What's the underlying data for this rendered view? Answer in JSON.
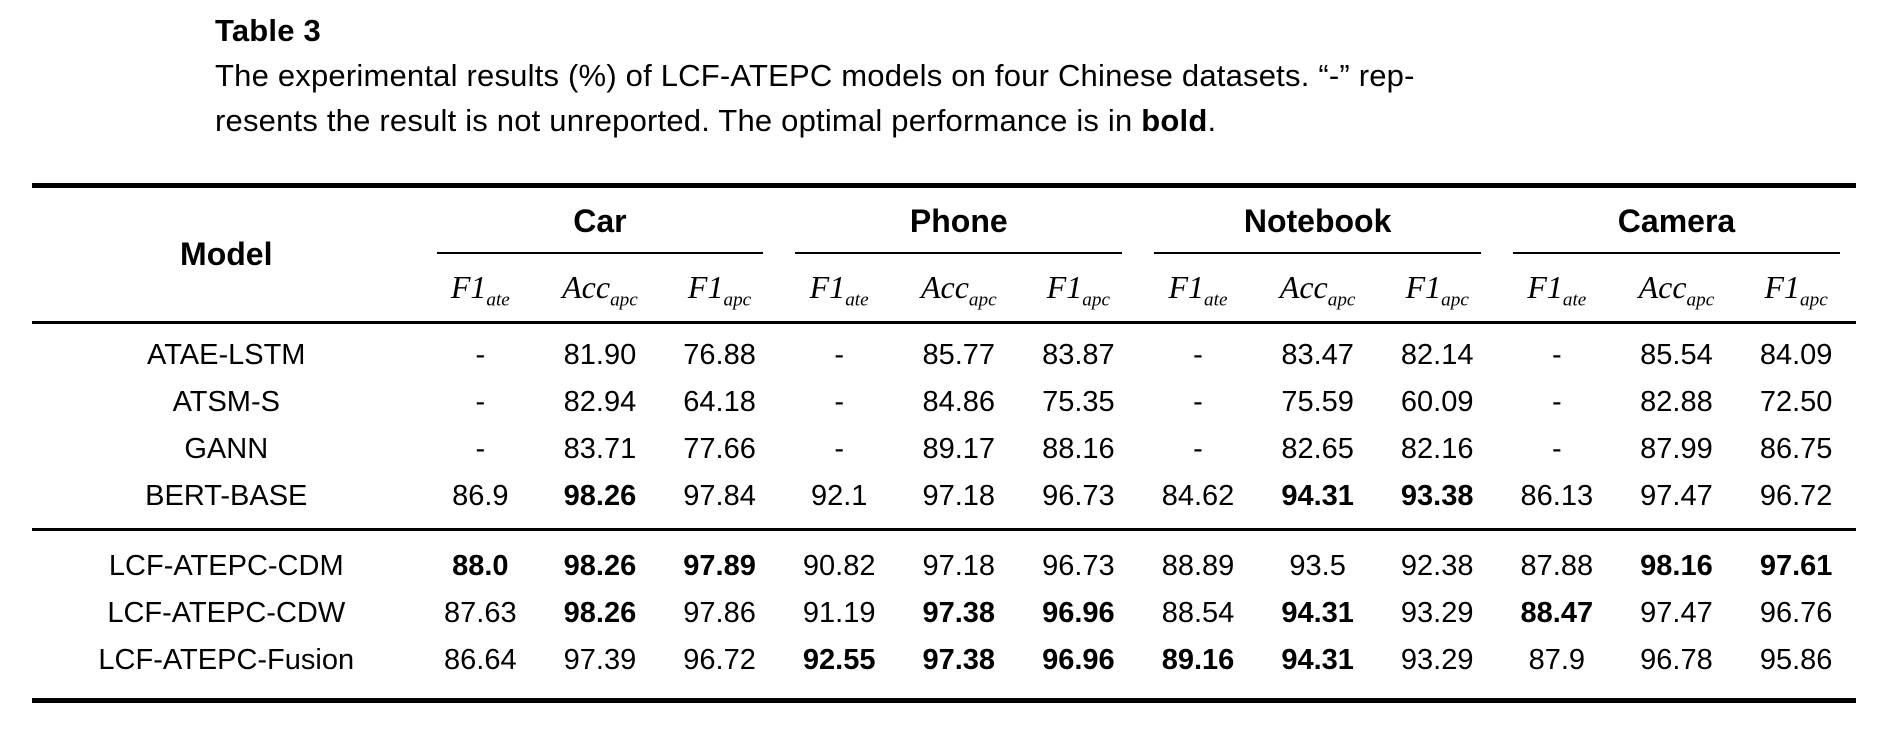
{
  "caption": {
    "title": "Table 3",
    "line1": "The experimental results (%) of LCF-ATEPC models on four Chinese datasets. “-” rep-",
    "line2_prefix": "resents the result is not unreported. The optimal performance is in ",
    "line2_bold": "bold",
    "line2_suffix": "."
  },
  "table": {
    "model_header": "Model",
    "groups": [
      {
        "label": "Car"
      },
      {
        "label": "Phone"
      },
      {
        "label": "Notebook"
      },
      {
        "label": "Camera"
      }
    ],
    "metrics_per_group": [
      {
        "base": "F1",
        "sub": "ate"
      },
      {
        "base": "Acc",
        "sub": "apc"
      },
      {
        "base": "F1",
        "sub": "apc"
      }
    ],
    "baseline_rows": [
      {
        "model": "ATAE-LSTM",
        "cells": [
          {
            "v": "-"
          },
          {
            "v": "81.90"
          },
          {
            "v": "76.88"
          },
          {
            "v": "-"
          },
          {
            "v": "85.77"
          },
          {
            "v": "83.87"
          },
          {
            "v": "-"
          },
          {
            "v": "83.47"
          },
          {
            "v": "82.14"
          },
          {
            "v": "-"
          },
          {
            "v": "85.54"
          },
          {
            "v": "84.09"
          }
        ]
      },
      {
        "model": "ATSM-S",
        "cells": [
          {
            "v": "-"
          },
          {
            "v": "82.94"
          },
          {
            "v": "64.18"
          },
          {
            "v": "-"
          },
          {
            "v": "84.86"
          },
          {
            "v": "75.35"
          },
          {
            "v": "-"
          },
          {
            "v": "75.59"
          },
          {
            "v": "60.09"
          },
          {
            "v": "-"
          },
          {
            "v": "82.88"
          },
          {
            "v": "72.50"
          }
        ]
      },
      {
        "model": "GANN",
        "cells": [
          {
            "v": "-"
          },
          {
            "v": "83.71"
          },
          {
            "v": "77.66"
          },
          {
            "v": "-"
          },
          {
            "v": "89.17"
          },
          {
            "v": "88.16"
          },
          {
            "v": "-"
          },
          {
            "v": "82.65"
          },
          {
            "v": "82.16"
          },
          {
            "v": "-"
          },
          {
            "v": "87.99"
          },
          {
            "v": "86.75"
          }
        ]
      },
      {
        "model": "BERT-BASE",
        "cells": [
          {
            "v": "86.9"
          },
          {
            "v": "98.26",
            "b": true
          },
          {
            "v": "97.84"
          },
          {
            "v": "92.1"
          },
          {
            "v": "97.18"
          },
          {
            "v": "96.73"
          },
          {
            "v": "84.62"
          },
          {
            "v": "94.31",
            "b": true
          },
          {
            "v": "93.38",
            "b": true
          },
          {
            "v": "86.13"
          },
          {
            "v": "97.47"
          },
          {
            "v": "96.72"
          }
        ]
      }
    ],
    "lcf_rows": [
      {
        "model": "LCF-ATEPC-CDM",
        "cells": [
          {
            "v": "88.0",
            "b": true
          },
          {
            "v": "98.26",
            "b": true
          },
          {
            "v": "97.89",
            "b": true
          },
          {
            "v": "90.82"
          },
          {
            "v": "97.18"
          },
          {
            "v": "96.73"
          },
          {
            "v": "88.89"
          },
          {
            "v": "93.5"
          },
          {
            "v": "92.38"
          },
          {
            "v": "87.88"
          },
          {
            "v": "98.16",
            "b": true
          },
          {
            "v": "97.61",
            "b": true
          }
        ]
      },
      {
        "model": "LCF-ATEPC-CDW",
        "cells": [
          {
            "v": "87.63"
          },
          {
            "v": "98.26",
            "b": true
          },
          {
            "v": "97.86"
          },
          {
            "v": "91.19"
          },
          {
            "v": "97.38",
            "b": true
          },
          {
            "v": "96.96",
            "b": true
          },
          {
            "v": "88.54"
          },
          {
            "v": "94.31",
            "b": true
          },
          {
            "v": "93.29"
          },
          {
            "v": "88.47",
            "b": true
          },
          {
            "v": "97.47"
          },
          {
            "v": "96.76"
          }
        ]
      },
      {
        "model": "LCF-ATEPC-Fusion",
        "cells": [
          {
            "v": "86.64"
          },
          {
            "v": "97.39"
          },
          {
            "v": "96.72"
          },
          {
            "v": "92.55",
            "b": true
          },
          {
            "v": "97.38",
            "b": true
          },
          {
            "v": "96.96",
            "b": true
          },
          {
            "v": "89.16",
            "b": true
          },
          {
            "v": "94.31",
            "b": true
          },
          {
            "v": "93.29"
          },
          {
            "v": "87.9"
          },
          {
            "v": "96.78"
          },
          {
            "v": "95.86"
          }
        ]
      }
    ],
    "colors": {
      "text": "#000000",
      "background": "#ffffff",
      "rule": "#000000"
    }
  }
}
